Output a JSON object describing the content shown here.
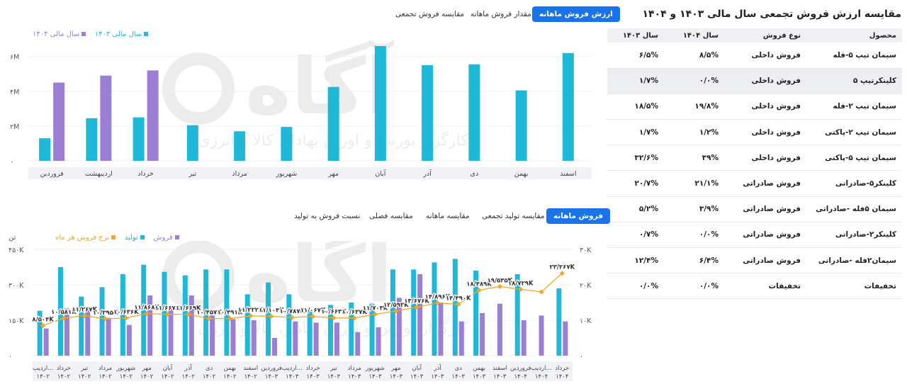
{
  "table": {
    "title": "مقایسه ارزش فروش تجمعی سال مالی ۱۴۰۳ و ۱۴۰۴",
    "headers": [
      "محصول",
      "نوع فروش",
      "سال ۱۴۰۴",
      "سال ۱۴۰۳"
    ],
    "rows": [
      [
        "سیمان تیپ ۵-فله",
        "فروش داخلی",
        "۸/۵%",
        "۶/۵%"
      ],
      [
        "کلینکرتیپ ۵",
        "فروش داخلی",
        "۰/۰%",
        "۱/۷%"
      ],
      [
        "سیمان تیپ ۲-فله",
        "فروش داخلی",
        "۱۹/۸%",
        "۱۸/۵%"
      ],
      [
        "سیمان تیپ ۲-پاکتی",
        "فروش داخلی",
        "۱/۲%",
        "۱/۷%"
      ],
      [
        "سیمان تیپ ۵-پاکتی",
        "فروش داخلی",
        "۳۹%",
        "۳۲/۶%"
      ],
      [
        "کلینکر۵-صادراتی",
        "فروش صادراتی",
        "۲۱/۱%",
        "۲۰/۷%"
      ],
      [
        "سیمان ۵فله -صادراتی",
        "فروش صادراتی",
        "۳/۹%",
        "۵/۲%"
      ],
      [
        "کلینکر۲-صادراتی",
        "فروش صادراتی",
        "۰/۰%",
        "۰/۷%"
      ],
      [
        "سیمان۲فله -صادراتی",
        "فروش صادراتی",
        "۶/۴%",
        "۱۲/۴%"
      ],
      [
        "تخفیفات",
        "تخفیفات",
        "۰/۰%",
        "۰/۰%"
      ]
    ]
  },
  "top_tabs": [
    "ارزش فروش ماهانه",
    "مقدار فروش ماهانه",
    "مقایسه فروش تجمعی"
  ],
  "bottom_tabs": [
    "فروش ماهانه",
    "مقایسه تولید تجمعی",
    "مقایسه ماهانه",
    "مقایسه فصلی",
    "نسبت فروش به تولید"
  ],
  "colors": {
    "teal": "#1fb8d8",
    "purple": "#9b7fd4",
    "orange": "#f5a623",
    "accent": "#1a73e8"
  },
  "watermark": {
    "logo_text": "آگاه",
    "tagline": "کارگزار بورس و اوراق بهادار، کالا و انرژی"
  },
  "chart_data": [
    {
      "type": "bar",
      "categories": [
        "اسفند",
        "بهمن",
        "دی",
        "آذر",
        "آبان",
        "مهر",
        "شهریور",
        "مرداد",
        "تیر",
        "خرداد",
        "اردیبهشت",
        "فروردین"
      ],
      "series": [
        {
          "name": "سال مالی ۱۴۰۳",
          "color": "#1fb8d8",
          "values": [
            6.2,
            4.05,
            5.55,
            5.5,
            6.6,
            4.25,
            1.95,
            1.7,
            2.05,
            2.5,
            2.45,
            1.3
          ]
        },
        {
          "name": "سال مالی ۱۴۰۴",
          "color": "#9b7fd4",
          "values": [
            null,
            null,
            null,
            null,
            null,
            null,
            null,
            null,
            null,
            5.2,
            4.9,
            4.5
          ]
        }
      ],
      "ylim": [
        0,
        6.6
      ],
      "yticks": [
        "۰",
        "۲M",
        "۴M",
        "۶M"
      ],
      "ytick_values": [
        0,
        2,
        4,
        6
      ]
    },
    {
      "type": "bar",
      "ylabel_left": "تن",
      "categories": [
        [
          "اردیب...",
          "۱۴۰۲"
        ],
        [
          "خرداد",
          "۱۴۰۲"
        ],
        [
          "تیر",
          "۱۴۰۲"
        ],
        [
          "مرداد",
          "۱۴۰۲"
        ],
        [
          "شهریور",
          "۱۴۰۲"
        ],
        [
          "مهر",
          "۱۴۰۲"
        ],
        [
          "آبان",
          "۱۴۰۲"
        ],
        [
          "آذر",
          "۱۴۰۲"
        ],
        [
          "دی",
          "۱۴۰۲"
        ],
        [
          "بهمن",
          "۱۴۰۲"
        ],
        [
          "اسفند",
          "۱۴۰۲"
        ],
        [
          "فروردین",
          "۱۴۰۳"
        ],
        [
          "اردیب...",
          "۱۴۰۳"
        ],
        [
          "خرداد",
          "۱۴۰۳"
        ],
        [
          "تیر",
          "۱۴۰۳"
        ],
        [
          "مرداد",
          "۱۴۰۳"
        ],
        [
          "شهریور",
          "۱۴۰۳"
        ],
        [
          "مهر",
          "۱۴۰۳"
        ],
        [
          "آبان",
          "۱۴۰۳"
        ],
        [
          "آذر",
          "۱۴۰۳"
        ],
        [
          "دی",
          "۱۴۰۳"
        ],
        [
          "بهمن",
          "۱۴۰۳"
        ],
        [
          "اسفند",
          "۱۴۰۳"
        ],
        [
          "فروردین",
          "۱۴۰۴"
        ],
        [
          "اردیب...",
          "۱۴۰۴"
        ],
        [
          "خرداد",
          "۱۴۰۴"
        ]
      ],
      "series": [
        {
          "name": "فروش",
          "color": "#9b7fd4",
          "values": [
            115000,
            200000,
            195000,
            160000,
            130000,
            255000,
            200000,
            255000,
            170000,
            155000,
            150000,
            75000,
            145000,
            140000,
            140000,
            100000,
            120000,
            245000,
            345000,
            225000,
            145000,
            180000,
            220000,
            150000,
            170000,
            145000
          ]
        },
        {
          "name": "تولید",
          "color": "#1fb8d8",
          "values": [
            190000,
            375000,
            250000,
            290000,
            345000,
            385000,
            355000,
            340000,
            365000,
            365000,
            260000,
            310000,
            260000,
            190000,
            215000,
            225000,
            220000,
            365000,
            365000,
            395000,
            410000,
            360000,
            null,
            345000,
            null,
            285000
          ]
        },
        {
          "name": "نرخ فروش هر ماه",
          "color": "#f5a623",
          "axis": "right",
          "values": [
            8504,
            10581,
            11267,
            10395,
            10636,
            11868,
            11667,
            11669,
            10457,
            10491,
            11222,
            11104,
            10787,
            11067,
            10663,
            10637,
            11703,
            12593,
            13676,
            14896,
            14490,
            18489,
            19535,
            18729,
            18000,
            23267
          ]
        }
      ],
      "point_labels": [
        "۸/۵۰۴K",
        "۱۰/۵۸۱K",
        "۱۱/۲۶۷K",
        "۱۰/۳۹۵K",
        "۱۰/۶۳۶K",
        "۱۱/۸۶۸K",
        "۱۱/۶۶۷K",
        "۱۱/۶۶۹K",
        "۱۰/۴۵۷K",
        "۱۰/۴۹۱K",
        "۱۱/۲۲۲K",
        "۱۱/۱۰۴K",
        "۱۰/۷۸۷K",
        "۱۱/۰۶۷K",
        "۱۰/۶۶۳K",
        "۱۰/۶۳۷K",
        "۱۱/۷۰۳K",
        "۱۲/۵۹۳K",
        "۱۳/۶۷۶K",
        "۱۴/۸۹۶K",
        "۱۴/۴۹۰K",
        "۱۸/۴۸۹K",
        "۱۹/۵۳۵K",
        "۱۸/۷۲۹K",
        "",
        "۲۳/۲۶۷K"
      ],
      "ylim_left": [
        0,
        450000
      ],
      "yticks_left": [
        "۰",
        "۱۵۰K",
        "۳۰۰K",
        "۴۵۰K"
      ],
      "ytick_left_values": [
        0,
        150000,
        300000,
        450000
      ],
      "ylim_right": [
        0,
        30000
      ],
      "yticks_right": [
        "۰",
        "۱۰K",
        "۲۰K",
        "۳۰K"
      ],
      "ytick_right_values": [
        0,
        10000,
        20000,
        30000
      ]
    }
  ]
}
